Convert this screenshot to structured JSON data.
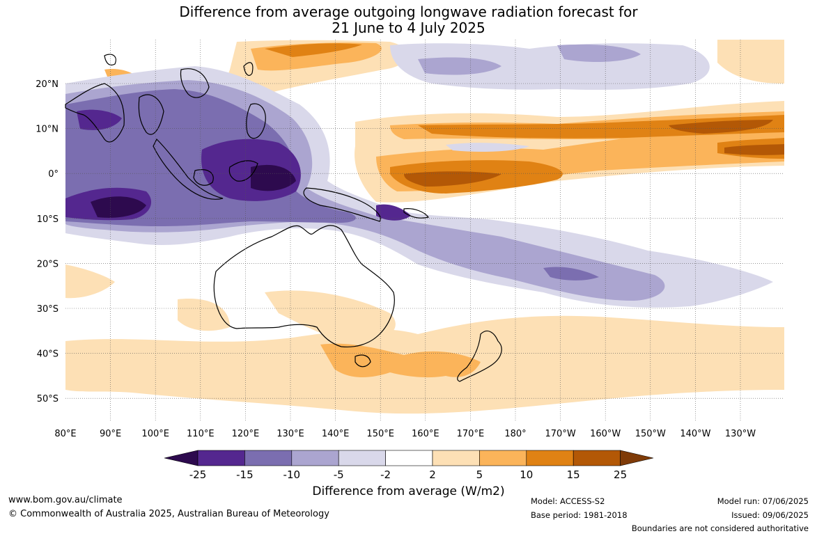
{
  "title": {
    "line1": "Difference from average outgoing longwave radiation forecast for",
    "line2": "21 June to 4 July 2025"
  },
  "map": {
    "lon_labels": [
      "80°E",
      "90°E",
      "100°E",
      "110°E",
      "120°E",
      "130°E",
      "140°E",
      "150°E",
      "160°E",
      "170°E",
      "180°",
      "170°W",
      "160°W",
      "150°W",
      "140°W",
      "130°W"
    ],
    "lat_labels": [
      "20°N",
      "10°N",
      "0°",
      "10°S",
      "20°S",
      "30°S",
      "40°S",
      "50°S"
    ]
  },
  "colorbar": {
    "title": "Difference from average (W/m2)",
    "tick_labels": [
      "-25",
      "-15",
      "-10",
      "-5",
      "-2",
      "2",
      "5",
      "10",
      "15",
      "25"
    ],
    "colors": {
      "lt_-25": "#2d0a4e",
      "-25_-15": "#54278f",
      "-15_-10": "#7b6eb0",
      "-10_-5": "#aba5d0",
      "-5_-2": "#d9d8ea",
      "-2_2": "#ffffff",
      "2_5": "#fde0b5",
      "5_10": "#fbb45a",
      "10_15": "#e08214",
      "15_25": "#b35806",
      "gt_25": "#7f3b08"
    }
  },
  "footer": {
    "website": "www.bom.gov.au/climate",
    "copyright": "© Commonwealth of Australia 2025, Australian Bureau of Meteorology",
    "model": "Model: ACCESS-S2",
    "base_period": "Base period: 1981-2018",
    "model_run": "Model run: 07/06/2025",
    "issued": "Issued: 09/06/2025",
    "disclaimer": "Boundaries are not considered authoritative"
  }
}
